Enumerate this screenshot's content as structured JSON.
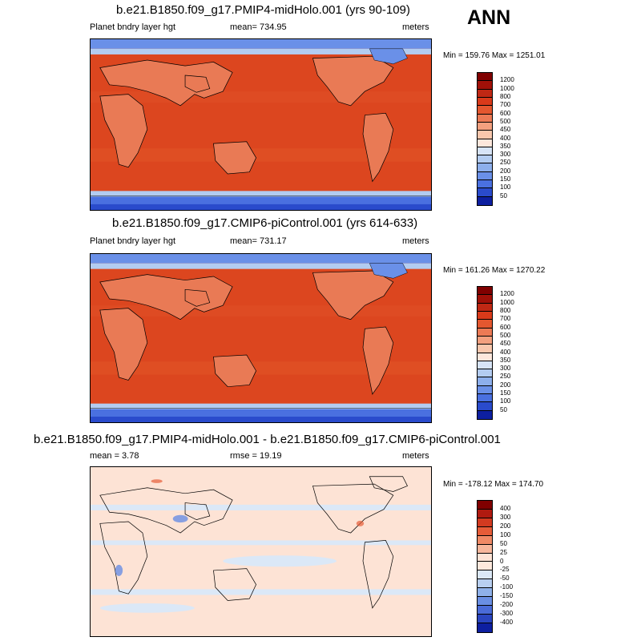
{
  "season_label": "ANN",
  "panels": [
    {
      "title": "b.e21.B1850.f09_g17.PMIP4-midHolo.001 (yrs 90-109)",
      "left_text": "Planet bndry layer hgt",
      "center_text": "mean= 734.95",
      "units": "meters",
      "range_text": "Min = 159.76 Max = 1251.01",
      "colorbar_labels": [
        "1200",
        "1000",
        "800",
        "700",
        "600",
        "500",
        "450",
        "400",
        "350",
        "300",
        "250",
        "200",
        "150",
        "100",
        "50"
      ]
    },
    {
      "title": "b.e21.B1850.f09_g17.CMIP6-piControl.001 (yrs 614-633)",
      "left_text": "Planet bndry layer hgt",
      "center_text": "mean= 731.17",
      "units": "meters",
      "range_text": "Min = 161.26 Max = 1270.22",
      "colorbar_labels": [
        "1200",
        "1000",
        "800",
        "700",
        "600",
        "500",
        "450",
        "400",
        "350",
        "300",
        "250",
        "200",
        "150",
        "100",
        "50"
      ]
    },
    {
      "title": "b.e21.B1850.f09_g17.PMIP4-midHolo.001 - b.e21.B1850.f09_g17.CMIP6-piControl.001",
      "left_text": "mean =   3.78",
      "center_text": "rmse =  19.19",
      "units": "meters",
      "range_text": "Min = -178.12 Max = 174.70",
      "colorbar_labels": [
        "400",
        "300",
        "200",
        "100",
        "50",
        "25",
        "0",
        "-25",
        "-50",
        "-100",
        "-150",
        "-200",
        "-300",
        "-400"
      ]
    }
  ],
  "colors": {
    "abs_scale": [
      "#800000",
      "#a01008",
      "#c02814",
      "#d93a1a",
      "#e4572f",
      "#ec7a55",
      "#f3a07f",
      "#f9c7ad",
      "#fde7dc",
      "#d7e4f7",
      "#b3ccf1",
      "#8dafec",
      "#6a90e8",
      "#4a70e0",
      "#2a4bcc",
      "#0d1fa0",
      "#00007f"
    ],
    "diff_scale": [
      "#800000",
      "#b01a10",
      "#d23a20",
      "#e65c38",
      "#f08a66",
      "#f7b79c",
      "#fde3d5",
      "#fde8dc",
      "#dbe8f7",
      "#b8cff0",
      "#8fb1ea",
      "#6a8fe4",
      "#4a6bd8",
      "#2a45c0",
      "#0d1fa0",
      "#00007f"
    ],
    "ocean_warm": "#d8401c",
    "ocean_diff": "#fde3d5"
  }
}
